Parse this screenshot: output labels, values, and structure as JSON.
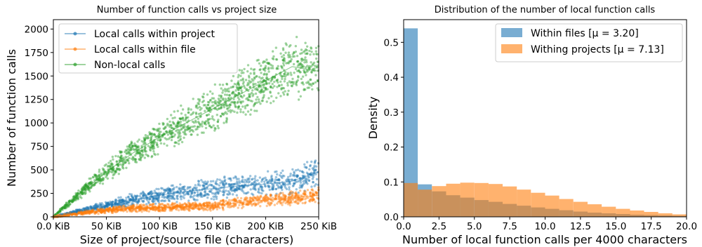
{
  "chart_data": [
    {
      "type": "scatter",
      "title": "Number of function calls vs project size",
      "xlabel": "Size of project/source file (characters)",
      "ylabel": "Number of function calls",
      "xlim": [
        0,
        250
      ],
      "ylim": [
        0,
        2100
      ],
      "x_unit": "KiB",
      "xticks": [
        0,
        50,
        100,
        150,
        200,
        250
      ],
      "xtick_labels": [
        "0.0 KiB",
        "50 KiB",
        "100 KiB",
        "150 KiB",
        "200 KiB",
        "250 KiB"
      ],
      "yticks": [
        0,
        250,
        500,
        750,
        1000,
        1250,
        1500,
        1750,
        2000
      ],
      "ytick_labels": [
        "0",
        "250",
        "500",
        "750",
        "1000",
        "1250",
        "1500",
        "1750",
        "2000"
      ],
      "legend_position": "top-left",
      "grid": false,
      "series": [
        {
          "name": "Local calls within project",
          "color": "#1f77b4",
          "x": [
            0,
            25,
            50,
            75,
            100,
            125,
            150,
            175,
            200,
            225,
            250
          ],
          "y": [
            0,
            60,
            120,
            180,
            230,
            270,
            300,
            330,
            350,
            380,
            480
          ]
        },
        {
          "name": "Local calls within file",
          "color": "#ff7f0e",
          "x": [
            0,
            25,
            50,
            75,
            100,
            125,
            150,
            175,
            200,
            225,
            250
          ],
          "y": [
            0,
            40,
            70,
            90,
            100,
            110,
            120,
            150,
            180,
            200,
            230
          ]
        },
        {
          "name": "Non-local calls",
          "color": "#2ca02c",
          "x": [
            0,
            25,
            50,
            75,
            100,
            125,
            150,
            175,
            200,
            225,
            250
          ],
          "y": [
            0,
            250,
            480,
            680,
            850,
            1000,
            1150,
            1300,
            1450,
            1600,
            1550
          ]
        }
      ]
    },
    {
      "type": "bar",
      "subtype": "histogram",
      "title": "Distribution of the number of local function calls",
      "xlabel": "Number of local function calls per 4000 characters",
      "ylabel": "Density",
      "xlim": [
        0,
        20
      ],
      "ylim": [
        0,
        0.565
      ],
      "bin_edges": [
        0,
        1,
        2,
        3,
        4,
        5,
        6,
        7,
        8,
        9,
        10,
        11,
        12,
        13,
        14,
        15,
        16,
        17,
        18,
        19,
        20
      ],
      "xticks": [
        0,
        2.5,
        5,
        7.5,
        10,
        12.5,
        15,
        17.5,
        20
      ],
      "xtick_labels": [
        "0.0",
        "2.5",
        "5.0",
        "7.5",
        "10.0",
        "12.5",
        "15.0",
        "17.5",
        "20.0"
      ],
      "yticks": [
        0,
        0.1,
        0.2,
        0.3,
        0.4,
        0.5
      ],
      "ytick_labels": [
        "0.0",
        "0.1",
        "0.2",
        "0.3",
        "0.4",
        "0.5"
      ],
      "legend_position": "top-right",
      "grid": false,
      "series": [
        {
          "name": "Within files [μ = 3.20]",
          "color": "#1f77b4",
          "alpha": 0.6,
          "values": [
            0.54,
            0.093,
            0.073,
            0.062,
            0.055,
            0.048,
            0.043,
            0.037,
            0.032,
            0.027,
            0.023,
            0.019,
            0.015,
            0.012,
            0.01,
            0.008,
            0.006,
            0.005,
            0.004,
            0.003
          ]
        },
        {
          "name": "Withing projects [μ = 7.13]",
          "color": "#ff7f0e",
          "alpha": 0.6,
          "values": [
            0.097,
            0.078,
            0.088,
            0.095,
            0.098,
            0.097,
            0.094,
            0.087,
            0.078,
            0.069,
            0.061,
            0.051,
            0.043,
            0.036,
            0.029,
            0.023,
            0.018,
            0.014,
            0.01,
            0.007
          ]
        }
      ]
    }
  ]
}
